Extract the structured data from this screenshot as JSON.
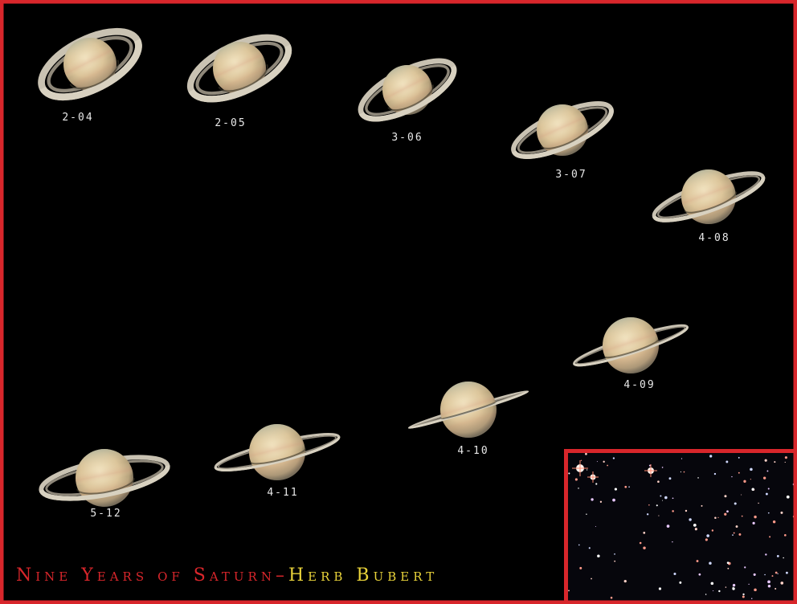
{
  "images": [
    {
      "label": "2-04"
    },
    {
      "label": "2-05"
    },
    {
      "label": "3-06"
    },
    {
      "label": "3-07"
    },
    {
      "label": "4-08"
    },
    {
      "label": "4-09"
    },
    {
      "label": "4-10"
    },
    {
      "label": "4-11"
    },
    {
      "label": "5-12"
    }
  ],
  "caption": {
    "title": "Nine Years of Saturn–",
    "author": "Herb Bubert"
  }
}
